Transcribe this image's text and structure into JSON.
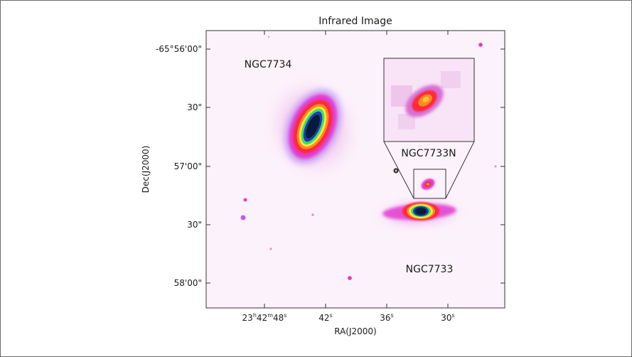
{
  "figure": {
    "title": "Infrared Image",
    "x_axis": {
      "label": "RA(J2000)",
      "ticks": [
        {
          "id": "ra-48",
          "parts": [
            "23",
            "h",
            "42",
            "m",
            "48",
            "s"
          ]
        },
        {
          "id": "ra-42",
          "parts": [
            "42",
            "s"
          ]
        },
        {
          "id": "ra-36",
          "parts": [
            "36",
            "s"
          ]
        },
        {
          "id": "ra-30",
          "parts": [
            "30",
            "s"
          ]
        }
      ]
    },
    "y_axis": {
      "label": "Dec(J2000)",
      "ticks": [
        "-65°56'00\"",
        "30\"",
        "57'00\"",
        "30\"",
        "58'00\""
      ]
    },
    "annotations": {
      "galaxy_1": "NGC7734",
      "galaxy_2": "NGC7733",
      "companion": "NGC7733N"
    },
    "colors": {
      "background": "#fcf2fb",
      "halo": "#f1c9ef",
      "magenta": "#e23bd0",
      "violet": "#9b3bf0",
      "red": "#ff2a3a",
      "orange": "#ff8a1f",
      "yellow": "#ffe63a",
      "green": "#35e06a",
      "blue": "#1f3bb0",
      "core": "#071a3a"
    }
  }
}
